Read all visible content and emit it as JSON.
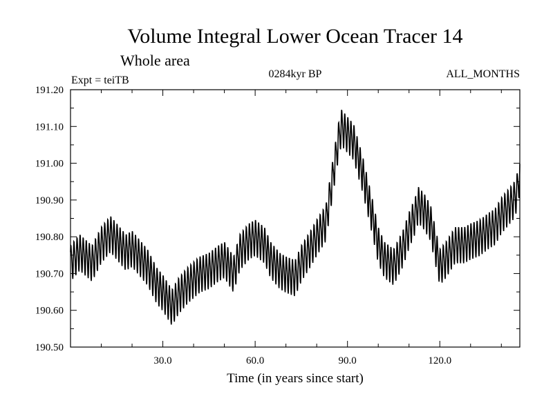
{
  "chart_data": {
    "type": "line",
    "title": "Volume Integral Lower Ocean Tracer 14",
    "subtitle": "Whole area",
    "expt_label": "Expt = teiTB",
    "period_label": "0284kyr BP",
    "months_label": "ALL_MONTHS",
    "xlabel": "Time (in years since start)",
    "ylabel": "",
    "xlim": [
      0,
      146
    ],
    "ylim": [
      190.5,
      191.2
    ],
    "x_ticks": [
      30,
      60,
      90,
      120
    ],
    "x_tick_labels": [
      "30.0",
      "60.0",
      "90.0",
      "120.0"
    ],
    "y_ticks": [
      190.5,
      190.6,
      190.7,
      190.8,
      190.9,
      191.0,
      191.1,
      191.2
    ],
    "y_tick_labels": [
      "190.50",
      "190.60",
      "190.70",
      "190.80",
      "190.90",
      "191.00",
      "191.10",
      "191.20"
    ],
    "seasonal_amplitude": 0.045,
    "series": [
      {
        "name": "Volume Integral Lower Ocean Tracer 14",
        "color": "#000000",
        "x": [
          0,
          3,
          7,
          10,
          13,
          15,
          18,
          20,
          23,
          25,
          28,
          30,
          33,
          35,
          38,
          42,
          45,
          48,
          50,
          53,
          55,
          58,
          60,
          63,
          65,
          68,
          70,
          73,
          75,
          78,
          80,
          83,
          85,
          87,
          88,
          90,
          92,
          95,
          98,
          100,
          102,
          105,
          108,
          110,
          112,
          113,
          115,
          117,
          118,
          120,
          122,
          125,
          128,
          130,
          133,
          136,
          138,
          140,
          142,
          144,
          145,
          146
        ],
        "y": [
          190.73,
          190.76,
          190.73,
          190.78,
          190.81,
          190.79,
          190.76,
          190.77,
          190.74,
          190.72,
          190.67,
          190.65,
          190.61,
          190.64,
          190.67,
          190.7,
          190.71,
          190.73,
          190.74,
          190.7,
          190.76,
          190.79,
          190.8,
          190.78,
          190.74,
          190.71,
          190.7,
          190.69,
          190.73,
          190.77,
          190.8,
          190.84,
          190.95,
          191.06,
          191.1,
          191.08,
          191.06,
          190.97,
          190.86,
          190.78,
          190.74,
          190.72,
          190.77,
          190.82,
          190.86,
          190.89,
          190.87,
          190.84,
          190.8,
          190.72,
          190.74,
          190.78,
          190.78,
          190.79,
          190.8,
          190.82,
          190.83,
          190.86,
          190.88,
          190.9,
          190.92,
          190.97
        ]
      }
    ]
  }
}
